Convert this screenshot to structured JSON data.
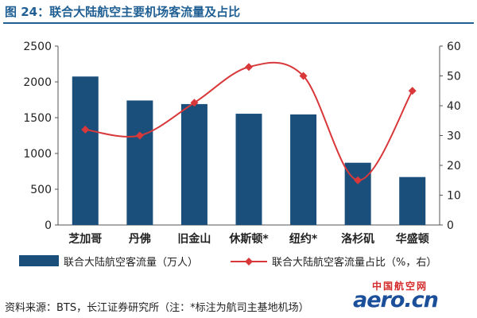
{
  "figure": {
    "title": "图 24：联合大陆航空主要机场客流量及占比",
    "source": "资料来源：BTS，长江证券研究所（注：*标注为航司主基地机场）"
  },
  "watermark": {
    "cn": "中国航空网",
    "en": "aero.cn"
  },
  "colors": {
    "bar": "#1a4f7c",
    "line": "#d9383a",
    "title": "#1f5f93"
  },
  "chart_data": {
    "type": "bar",
    "categories": [
      "芝加哥",
      "丹佛",
      "旧金山",
      "休斯顿*",
      "纽约*",
      "洛杉矶",
      "华盛顿"
    ],
    "series": [
      {
        "name": "联合大陆航空客流量（万人）",
        "type": "bar",
        "axis": "left",
        "values": [
          2075,
          1740,
          1690,
          1555,
          1545,
          870,
          670
        ]
      },
      {
        "name": "联合大陆航空客流量占比（%，右）",
        "type": "line",
        "axis": "right",
        "values": [
          32,
          30,
          41,
          53,
          50,
          15,
          45
        ]
      }
    ],
    "y_left": {
      "min": 0,
      "max": 2500,
      "ticks": [
        0,
        500,
        1000,
        1500,
        2000,
        2500
      ]
    },
    "y_right": {
      "min": 0,
      "max": 60,
      "ticks": [
        0,
        10,
        20,
        30,
        40,
        50,
        60
      ]
    },
    "legend_position": "bottom",
    "grid": false
  }
}
